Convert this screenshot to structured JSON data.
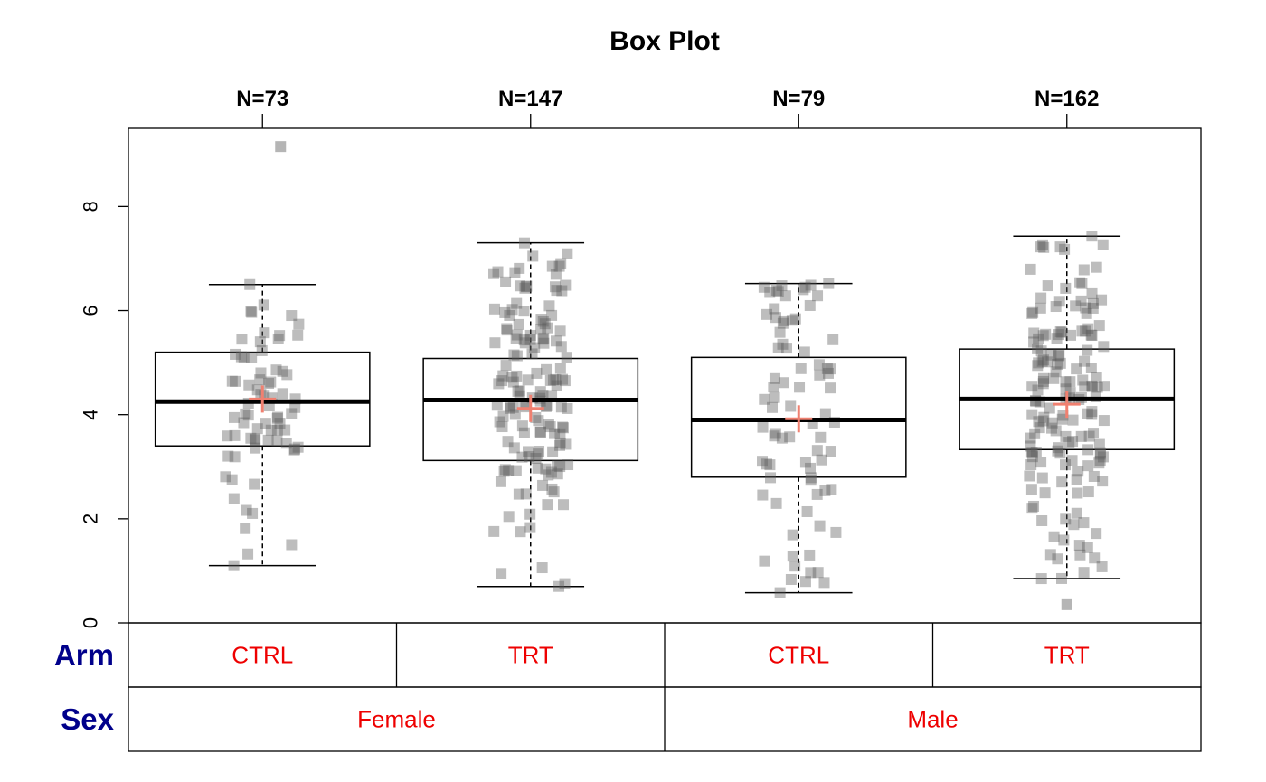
{
  "chart_data": {
    "type": "box",
    "title": "Box Plot",
    "ylim": [
      0,
      9.5
    ],
    "y_ticks": [
      "0",
      "2",
      "4",
      "6",
      "8"
    ],
    "groups": [
      {
        "n_label": "N=73",
        "arm": "CTRL",
        "sex": "Female",
        "n": 73,
        "min": 1.1,
        "q1": 3.4,
        "median": 4.25,
        "q3": 5.2,
        "max": 6.5,
        "mean": 4.3
      },
      {
        "n_label": "N=147",
        "arm": "TRT",
        "sex": "Female",
        "n": 147,
        "min": 0.7,
        "q1": 3.12,
        "median": 4.28,
        "q3": 5.08,
        "max": 7.3,
        "mean": 4.12
      },
      {
        "n_label": "N=79",
        "arm": "CTRL",
        "sex": "Male",
        "n": 79,
        "min": 0.58,
        "q1": 2.8,
        "median": 3.9,
        "q3": 5.1,
        "max": 6.52,
        "mean": 3.92
      },
      {
        "n_label": "N=162",
        "arm": "TRT",
        "sex": "Male",
        "n": 162,
        "min": 0.85,
        "q1": 3.33,
        "median": 4.3,
        "q3": 5.26,
        "max": 7.43,
        "mean": 4.2
      }
    ],
    "outliers": [
      {
        "group": 0,
        "value": 9.15
      },
      {
        "group": 3,
        "value": 0.35
      }
    ],
    "table_rows": [
      {
        "label": "Arm",
        "cells": [
          "CTRL",
          "TRT",
          "CTRL",
          "TRT"
        ]
      },
      {
        "label": "Sex",
        "cells": [
          "Female",
          "Male"
        ]
      }
    ],
    "colors": {
      "points": "#5a5a5a",
      "mean_marker": "#f08070",
      "table_label": "#00008b",
      "table_cell": "#ee0000"
    }
  }
}
